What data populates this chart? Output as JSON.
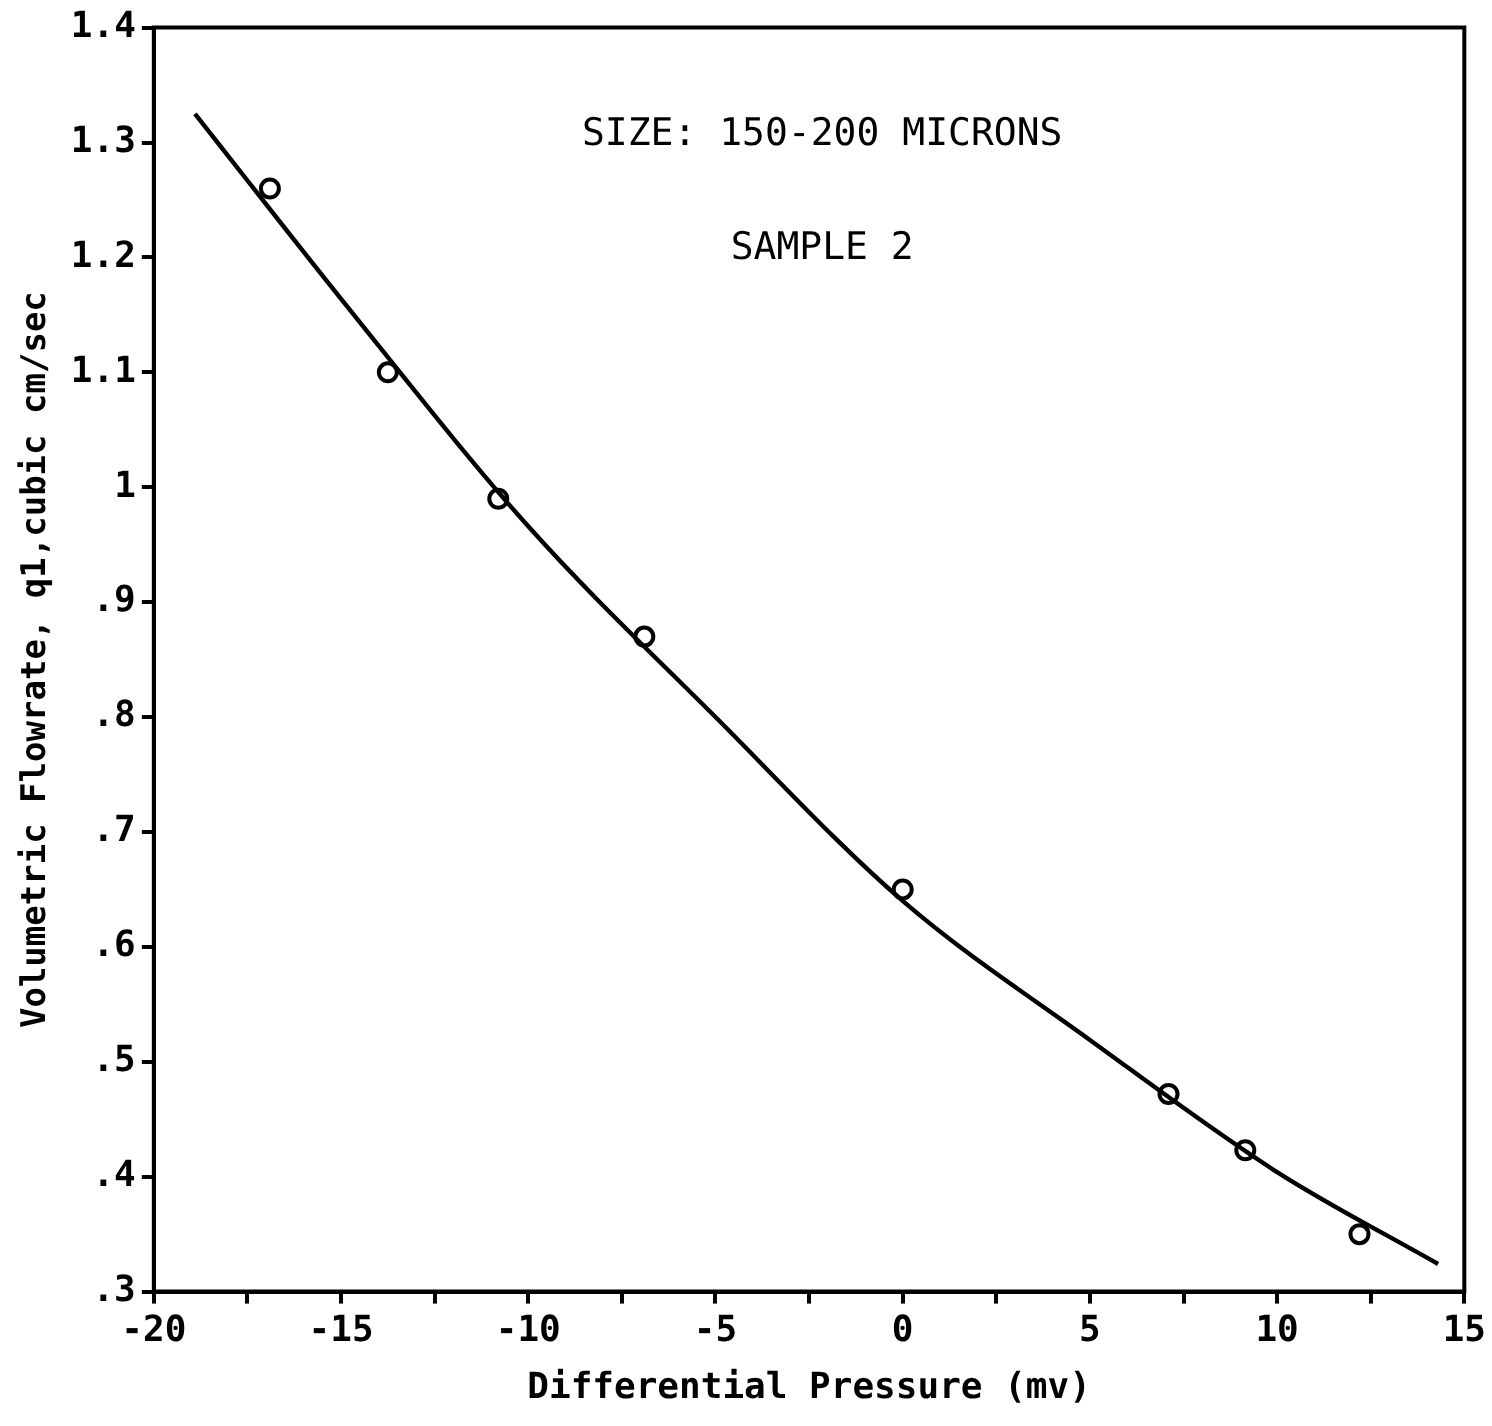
{
  "chart_data": {
    "type": "scatter",
    "xlabel": "Differential Pressure (mv)",
    "ylabel": "Volumetric Flowrate, q1,cubic cm/sec",
    "annotations": [
      "SIZE: 150-200 MICRONS",
      "SAMPLE 2"
    ],
    "series": [
      {
        "color": "#000000",
        "marker": "circle",
        "x": [
          -16.9,
          -13.75,
          -10.8,
          -6.9,
          0,
          7.1,
          9.15,
          12.2
        ],
        "values": [
          1.26,
          1.1,
          0.99,
          0.87,
          0.65,
          0.472,
          0.423,
          0.35
        ]
      },
      {
        "type": "line",
        "color": "#000000",
        "marker": "none",
        "line_style": "solid",
        "x": [
          -18.9,
          -15,
          -10,
          -5,
          0,
          5,
          10,
          14.3
        ],
        "values": [
          1.325,
          1.164,
          0.966,
          0.8,
          0.64,
          0.519,
          0.404,
          0.324
        ]
      }
    ],
    "xlim": [
      -20,
      15
    ],
    "xticks": [
      -20,
      {
        "value": -17.5,
        "label": null
      },
      -15,
      {
        "value": -12.5,
        "label": null
      },
      -10,
      {
        "value": -7.5,
        "label": null
      },
      -5,
      {
        "value": -2.5,
        "label": null
      },
      0,
      {
        "value": 2.5,
        "label": null
      },
      5,
      {
        "value": 7.5,
        "label": null
      },
      10,
      {
        "value": 12.5,
        "label": null
      },
      15
    ],
    "ylim": [
      0.3,
      1.4
    ],
    "yticks": [
      {
        "value": 0.3,
        "label": ".3"
      },
      {
        "value": 0.4,
        "label": ".4"
      },
      {
        "value": 0.5,
        "label": ".5"
      },
      {
        "value": 0.6,
        "label": ".6"
      },
      {
        "value": 0.7,
        "label": ".7"
      },
      {
        "value": 0.8,
        "label": ".8"
      },
      {
        "value": 0.9,
        "label": ".9"
      },
      1,
      1.1,
      1.2,
      1.3,
      1.4
    ],
    "grid": false,
    "legend": false
  }
}
